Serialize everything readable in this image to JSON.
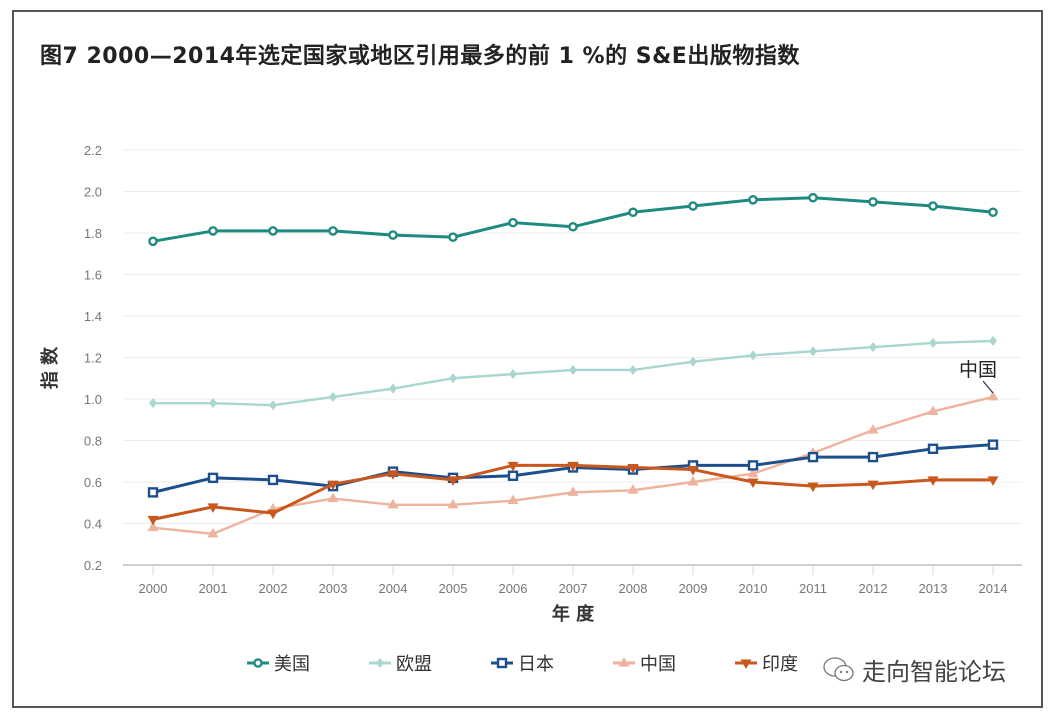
{
  "title": "图7   2000—2014年选定国家或地区引用最多的前 1 %的 S&E出版物指数",
  "watermark": "走向智能论坛",
  "chart_data": {
    "type": "line",
    "title": "图7   2000—2014年选定国家或地区引用最多的前 1 %的 S&E出版物指数",
    "xlabel": "年 度",
    "ylabel": "指 数",
    "x": [
      "2000",
      "2001",
      "2002",
      "2003",
      "2004",
      "2005",
      "2006",
      "2007",
      "2008",
      "2009",
      "2010",
      "2011",
      "2012",
      "2013",
      "2014"
    ],
    "yticks": [
      "0.2",
      "0.4",
      "0.6",
      "0.8",
      "1.0",
      "1.2",
      "1.4",
      "1.6",
      "1.8",
      "2.0",
      "2.2"
    ],
    "ylim": [
      0.2,
      2.2
    ],
    "grid": true,
    "legend_position": "bottom",
    "annotation": "中国",
    "series": [
      {
        "name": "美国",
        "color": "#1f8a80",
        "marker": "circle",
        "values": [
          1.76,
          1.81,
          1.81,
          1.81,
          1.79,
          1.78,
          1.85,
          1.83,
          1.9,
          1.93,
          1.96,
          1.97,
          1.95,
          1.93,
          1.9
        ]
      },
      {
        "name": "欧盟",
        "color": "#a9d6cf",
        "marker": "diamond",
        "values": [
          0.98,
          0.98,
          0.97,
          1.01,
          1.05,
          1.1,
          1.12,
          1.14,
          1.14,
          1.18,
          1.21,
          1.23,
          1.25,
          1.27,
          1.28
        ]
      },
      {
        "name": "日本",
        "color": "#1d4f8c",
        "marker": "square",
        "values": [
          0.55,
          0.62,
          0.61,
          0.58,
          0.65,
          0.62,
          0.63,
          0.67,
          0.66,
          0.68,
          0.68,
          0.72,
          0.72,
          0.76,
          0.78
        ]
      },
      {
        "name": "中国",
        "color": "#eeb39e",
        "marker": "triangle-up",
        "values": [
          0.38,
          0.35,
          0.47,
          0.52,
          0.49,
          0.49,
          0.51,
          0.55,
          0.56,
          0.6,
          0.64,
          0.74,
          0.85,
          0.94,
          1.01
        ]
      },
      {
        "name": "印度",
        "color": "#c9581f",
        "marker": "triangle-down",
        "values": [
          0.42,
          0.48,
          0.45,
          0.59,
          0.64,
          0.61,
          0.68,
          0.68,
          0.67,
          0.66,
          0.6,
          0.58,
          0.59,
          0.61,
          0.61
        ]
      }
    ]
  }
}
